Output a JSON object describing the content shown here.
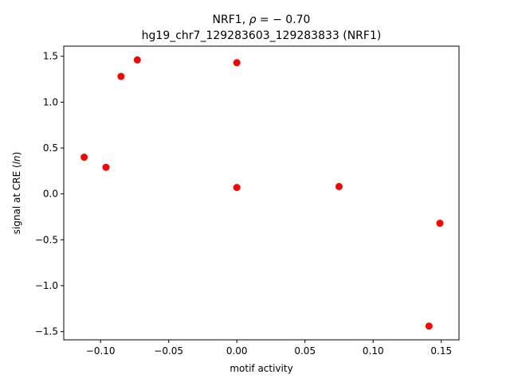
{
  "chart_data": {
    "type": "scatter",
    "title_line1_prefix": "NRF1, ",
    "title_line1_rho": "ρ",
    "title_line1_eq": " = − 0.70",
    "title_line2": "hg19_chr7_129283603_129283833 (NRF1)",
    "xlabel": "motif activity",
    "ylabel_prefix": "signal at CRE (",
    "ylabel_italic": "ln",
    "ylabel_suffix": ")",
    "xlim": [
      -0.127,
      0.163
    ],
    "ylim": [
      -1.59,
      1.61
    ],
    "xticks": [
      -0.1,
      -0.05,
      0.0,
      0.05,
      0.1,
      0.15
    ],
    "xtick_labels": [
      "−0.10",
      "−0.05",
      "0.00",
      "0.05",
      "0.10",
      "0.15"
    ],
    "yticks": [
      -1.5,
      -1.0,
      -0.5,
      0.0,
      0.5,
      1.0,
      1.5
    ],
    "ytick_labels": [
      "−1.5",
      "−1.0",
      "−0.5",
      "0.0",
      "0.5",
      "1.0",
      "1.5"
    ],
    "marker_color": "#ff0000",
    "grid": false,
    "points": [
      {
        "x": -0.112,
        "y": 0.4
      },
      {
        "x": -0.096,
        "y": 0.29
      },
      {
        "x": -0.085,
        "y": 1.28
      },
      {
        "x": -0.073,
        "y": 1.46
      },
      {
        "x": 0.0,
        "y": 1.43
      },
      {
        "x": 0.0,
        "y": 0.07
      },
      {
        "x": 0.075,
        "y": 0.08
      },
      {
        "x": 0.149,
        "y": -0.32
      },
      {
        "x": 0.141,
        "y": -1.44
      }
    ]
  }
}
